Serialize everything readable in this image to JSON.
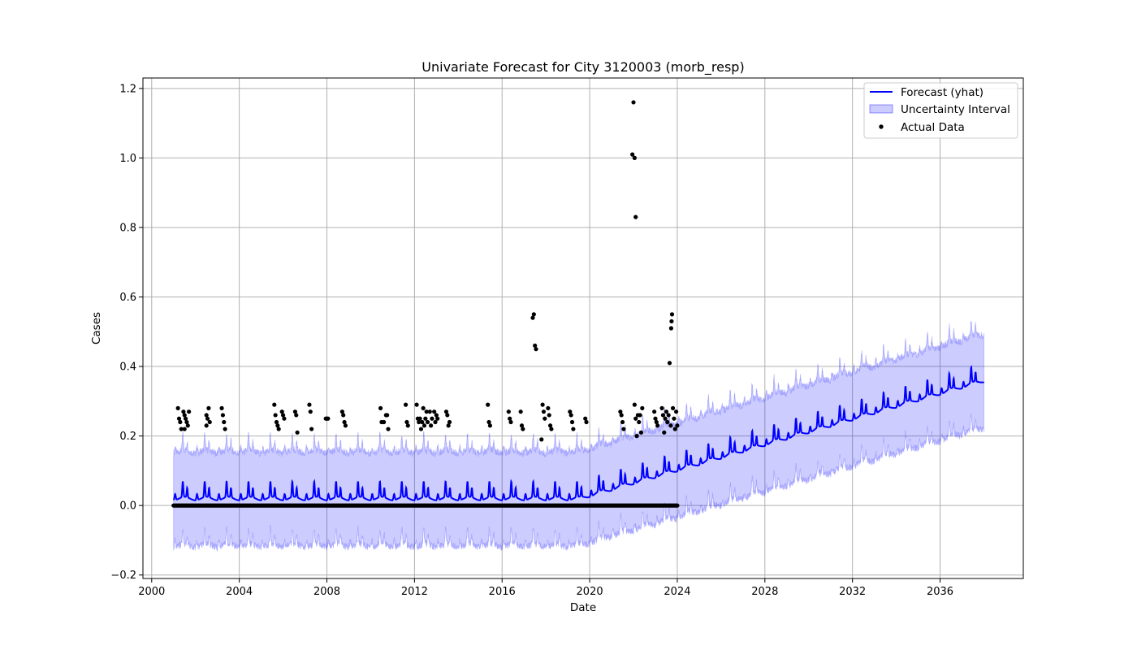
{
  "chart_data": {
    "type": "line",
    "title": "Univariate Forecast for City 3120003 (morb_resp)",
    "xlabel": "Date",
    "ylabel": "Cases",
    "xlim": [
      1999.6,
      2039.8
    ],
    "ylim": [
      -0.21,
      1.23
    ],
    "x_ticks": [
      2000,
      2004,
      2008,
      2012,
      2016,
      2020,
      2024,
      2028,
      2032,
      2036
    ],
    "y_ticks": [
      -0.2,
      0.0,
      0.2,
      0.4,
      0.6,
      0.8,
      1.0,
      1.2
    ],
    "y_tick_labels": [
      "−0.2",
      "0.0",
      "0.2",
      "0.4",
      "0.6",
      "0.8",
      "1.0",
      "1.2"
    ],
    "grid": true,
    "legend_position": "top-right",
    "legend": [
      "Forecast (yhat)",
      "Uncertainty Interval",
      "Actual Data"
    ],
    "colors": {
      "forecast": "#0000ff",
      "interval": "#0000ff",
      "actual": "#000000",
      "grid": "#b0b0b0"
    },
    "forecast": {
      "name": "Forecast (yhat)",
      "x_start": 2001.0,
      "x_end": 2038.0,
      "trend": [
        [
          2001.0,
          0.02
        ],
        [
          2019.5,
          0.02
        ],
        [
          2038.0,
          0.36
        ]
      ],
      "seasonal_peak_amplitude": 0.05,
      "interval_width": 0.135
    },
    "actual": {
      "name": "Actual Data",
      "x_start": 2001.0,
      "x_end": 2024.0,
      "zero_value": 0.0,
      "points": [
        [
          2001.2,
          0.28
        ],
        [
          2001.25,
          0.25
        ],
        [
          2001.3,
          0.24
        ],
        [
          2001.35,
          0.22
        ],
        [
          2001.45,
          0.27
        ],
        [
          2001.5,
          0.26
        ],
        [
          2001.55,
          0.25
        ],
        [
          2001.6,
          0.24
        ],
        [
          2001.65,
          0.23
        ],
        [
          2001.7,
          0.27
        ],
        [
          2001.5,
          0.22
        ],
        [
          2002.5,
          0.26
        ],
        [
          2002.55,
          0.25
        ],
        [
          2002.6,
          0.28
        ],
        [
          2002.65,
          0.24
        ],
        [
          2002.5,
          0.23
        ],
        [
          2003.2,
          0.28
        ],
        [
          2003.25,
          0.26
        ],
        [
          2003.3,
          0.24
        ],
        [
          2003.35,
          0.22
        ],
        [
          2005.6,
          0.29
        ],
        [
          2005.65,
          0.26
        ],
        [
          2005.7,
          0.24
        ],
        [
          2005.75,
          0.23
        ],
        [
          2005.8,
          0.22
        ],
        [
          2005.95,
          0.27
        ],
        [
          2006.0,
          0.26
        ],
        [
          2006.05,
          0.25
        ],
        [
          2006.55,
          0.27
        ],
        [
          2006.6,
          0.26
        ],
        [
          2006.65,
          0.21
        ],
        [
          2007.2,
          0.29
        ],
        [
          2007.25,
          0.27
        ],
        [
          2007.3,
          0.22
        ],
        [
          2007.95,
          0.25
        ],
        [
          2008.0,
          0.25
        ],
        [
          2008.05,
          0.25
        ],
        [
          2008.7,
          0.27
        ],
        [
          2008.75,
          0.26
        ],
        [
          2008.8,
          0.24
        ],
        [
          2008.85,
          0.23
        ],
        [
          2010.45,
          0.28
        ],
        [
          2010.5,
          0.24
        ],
        [
          2010.6,
          0.24
        ],
        [
          2010.7,
          0.26
        ],
        [
          2010.75,
          0.26
        ],
        [
          2010.8,
          0.22
        ],
        [
          2011.6,
          0.29
        ],
        [
          2011.65,
          0.24
        ],
        [
          2011.7,
          0.23
        ],
        [
          2012.1,
          0.29
        ],
        [
          2012.15,
          0.25
        ],
        [
          2012.2,
          0.24
        ],
        [
          2012.25,
          0.25
        ],
        [
          2012.3,
          0.22
        ],
        [
          2012.35,
          0.24
        ],
        [
          2012.4,
          0.28
        ],
        [
          2012.45,
          0.23
        ],
        [
          2012.5,
          0.25
        ],
        [
          2012.55,
          0.27
        ],
        [
          2012.6,
          0.24
        ],
        [
          2012.7,
          0.27
        ],
        [
          2012.75,
          0.23
        ],
        [
          2012.8,
          0.25
        ],
        [
          2012.9,
          0.27
        ],
        [
          2012.95,
          0.24
        ],
        [
          2013.0,
          0.26
        ],
        [
          2013.05,
          0.25
        ],
        [
          2013.45,
          0.27
        ],
        [
          2013.5,
          0.26
        ],
        [
          2013.55,
          0.23
        ],
        [
          2013.6,
          0.24
        ],
        [
          2015.35,
          0.29
        ],
        [
          2015.4,
          0.24
        ],
        [
          2015.45,
          0.23
        ],
        [
          2016.3,
          0.27
        ],
        [
          2016.35,
          0.25
        ],
        [
          2016.4,
          0.24
        ],
        [
          2016.85,
          0.27
        ],
        [
          2016.9,
          0.23
        ],
        [
          2016.95,
          0.22
        ],
        [
          2017.4,
          0.54
        ],
        [
          2017.45,
          0.55
        ],
        [
          2017.5,
          0.46
        ],
        [
          2017.55,
          0.45
        ],
        [
          2017.8,
          0.19
        ],
        [
          2017.85,
          0.29
        ],
        [
          2017.9,
          0.27
        ],
        [
          2017.95,
          0.25
        ],
        [
          2018.1,
          0.28
        ],
        [
          2018.15,
          0.26
        ],
        [
          2018.2,
          0.23
        ],
        [
          2018.25,
          0.22
        ],
        [
          2019.1,
          0.27
        ],
        [
          2019.15,
          0.26
        ],
        [
          2019.2,
          0.24
        ],
        [
          2019.25,
          0.22
        ],
        [
          2019.8,
          0.25
        ],
        [
          2019.85,
          0.24
        ],
        [
          2021.4,
          0.27
        ],
        [
          2021.45,
          0.26
        ],
        [
          2021.5,
          0.24
        ],
        [
          2021.55,
          0.22
        ],
        [
          2021.95,
          1.01
        ],
        [
          2022.0,
          1.16
        ],
        [
          2022.05,
          1.0
        ],
        [
          2022.1,
          0.83
        ],
        [
          2022.05,
          0.29
        ],
        [
          2022.1,
          0.25
        ],
        [
          2022.15,
          0.2
        ],
        [
          2022.2,
          0.26
        ],
        [
          2022.25,
          0.24
        ],
        [
          2022.3,
          0.26
        ],
        [
          2022.35,
          0.21
        ],
        [
          2022.4,
          0.28
        ],
        [
          2022.95,
          0.27
        ],
        [
          2023.0,
          0.25
        ],
        [
          2023.05,
          0.24
        ],
        [
          2023.1,
          0.23
        ],
        [
          2023.3,
          0.28
        ],
        [
          2023.35,
          0.26
        ],
        [
          2023.4,
          0.21
        ],
        [
          2023.45,
          0.25
        ],
        [
          2023.5,
          0.27
        ],
        [
          2023.55,
          0.24
        ],
        [
          2023.6,
          0.26
        ],
        [
          2023.65,
          0.41
        ],
        [
          2023.7,
          0.23
        ],
        [
          2023.72,
          0.51
        ],
        [
          2023.74,
          0.53
        ],
        [
          2023.76,
          0.55
        ],
        [
          2023.8,
          0.28
        ],
        [
          2023.85,
          0.25
        ],
        [
          2023.9,
          0.22
        ],
        [
          2023.95,
          0.27
        ],
        [
          2024.0,
          0.23
        ]
      ]
    }
  }
}
